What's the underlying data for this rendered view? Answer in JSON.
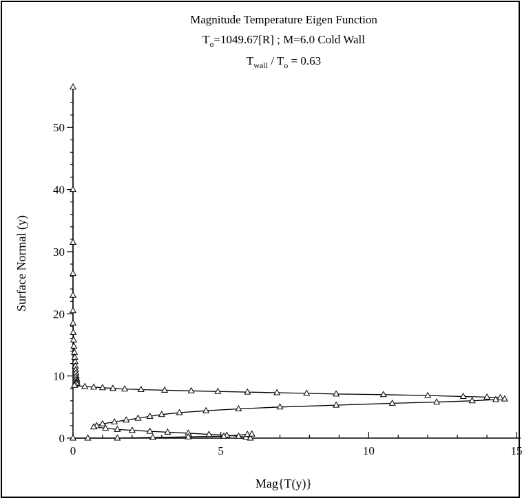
{
  "chart_data": {
    "type": "line",
    "title_lines": [
      [
        "Magnitude Temperature Eigen Function"
      ],
      [
        "T",
        "o",
        "=1049.67[R] ; M=6.0 Cold Wall"
      ],
      [
        "T",
        "wall",
        " / T",
        "o",
        " = 0.63"
      ]
    ],
    "xlabel": "Mag{T(y)}",
    "ylabel": "Surface Normal (y)",
    "xlim": [
      0,
      15
    ],
    "ylim": [
      0,
      57
    ],
    "x_ticks": [
      0,
      5,
      10,
      15
    ],
    "x_tick_labels": [
      "0",
      "5",
      "10",
      "15"
    ],
    "y_ticks": [
      0,
      10,
      20,
      30,
      40,
      50
    ],
    "y_tick_labels": [
      "0",
      "10",
      "20",
      "30",
      "40",
      "50"
    ],
    "grid": false,
    "marker": "open-triangle",
    "series": [
      {
        "points": [
          [
            0.0,
            56.5
          ],
          [
            0.0,
            40.0
          ],
          [
            0.0,
            31.5
          ],
          [
            0.0,
            26.5
          ],
          [
            0.0,
            23.0
          ],
          [
            0.0,
            20.5
          ],
          [
            0.0,
            18.5
          ],
          [
            0.01,
            17.0
          ],
          [
            0.02,
            15.8
          ],
          [
            0.03,
            14.8
          ],
          [
            0.05,
            13.8
          ],
          [
            0.06,
            13.0
          ],
          [
            0.07,
            12.3
          ],
          [
            0.08,
            11.6
          ],
          [
            0.09,
            11.0
          ],
          [
            0.1,
            10.5
          ],
          [
            0.11,
            10.0
          ],
          [
            0.12,
            9.6
          ],
          [
            0.13,
            9.3
          ],
          [
            0.13,
            9.0
          ],
          [
            0.12,
            8.8
          ],
          [
            0.08,
            8.6
          ],
          [
            0.05,
            8.5
          ],
          [
            0.4,
            8.3
          ],
          [
            0.7,
            8.2
          ],
          [
            1.0,
            8.1
          ],
          [
            1.35,
            8.0
          ],
          [
            1.75,
            7.9
          ],
          [
            2.3,
            7.8
          ],
          [
            3.1,
            7.7
          ],
          [
            4.0,
            7.6
          ],
          [
            4.9,
            7.5
          ],
          [
            5.9,
            7.4
          ],
          [
            6.9,
            7.3
          ],
          [
            7.9,
            7.2
          ],
          [
            8.9,
            7.1
          ],
          [
            10.5,
            7.0
          ],
          [
            12.0,
            6.85
          ],
          [
            13.2,
            6.7
          ],
          [
            14.0,
            6.6
          ],
          [
            14.45,
            6.5
          ],
          [
            14.6,
            6.3
          ],
          [
            14.3,
            6.2
          ],
          [
            13.5,
            6.0
          ],
          [
            12.3,
            5.8
          ],
          [
            10.8,
            5.6
          ],
          [
            8.9,
            5.3
          ],
          [
            7.0,
            5.0
          ],
          [
            5.6,
            4.7
          ],
          [
            4.5,
            4.4
          ],
          [
            3.6,
            4.1
          ],
          [
            3.0,
            3.8
          ],
          [
            2.6,
            3.5
          ],
          [
            2.2,
            3.2
          ],
          [
            1.8,
            2.9
          ],
          [
            1.4,
            2.6
          ],
          [
            1.0,
            2.3
          ],
          [
            0.8,
            2.0
          ],
          [
            0.7,
            1.8
          ],
          [
            1.1,
            1.6
          ],
          [
            1.5,
            1.4
          ],
          [
            2.0,
            1.25
          ],
          [
            2.6,
            1.1
          ],
          [
            3.2,
            0.95
          ],
          [
            3.9,
            0.8
          ],
          [
            4.6,
            0.6
          ],
          [
            5.2,
            0.45
          ],
          [
            5.6,
            0.3
          ],
          [
            5.85,
            0.15
          ],
          [
            6.0,
            0.0
          ]
        ]
      },
      {
        "points": [
          [
            0.0,
            0.0
          ],
          [
            0.5,
            0.0
          ],
          [
            1.5,
            0.0
          ],
          [
            2.7,
            0.1
          ],
          [
            3.9,
            0.2
          ],
          [
            5.1,
            0.3
          ],
          [
            5.9,
            0.6
          ],
          [
            6.05,
            0.65
          ]
        ]
      }
    ]
  }
}
